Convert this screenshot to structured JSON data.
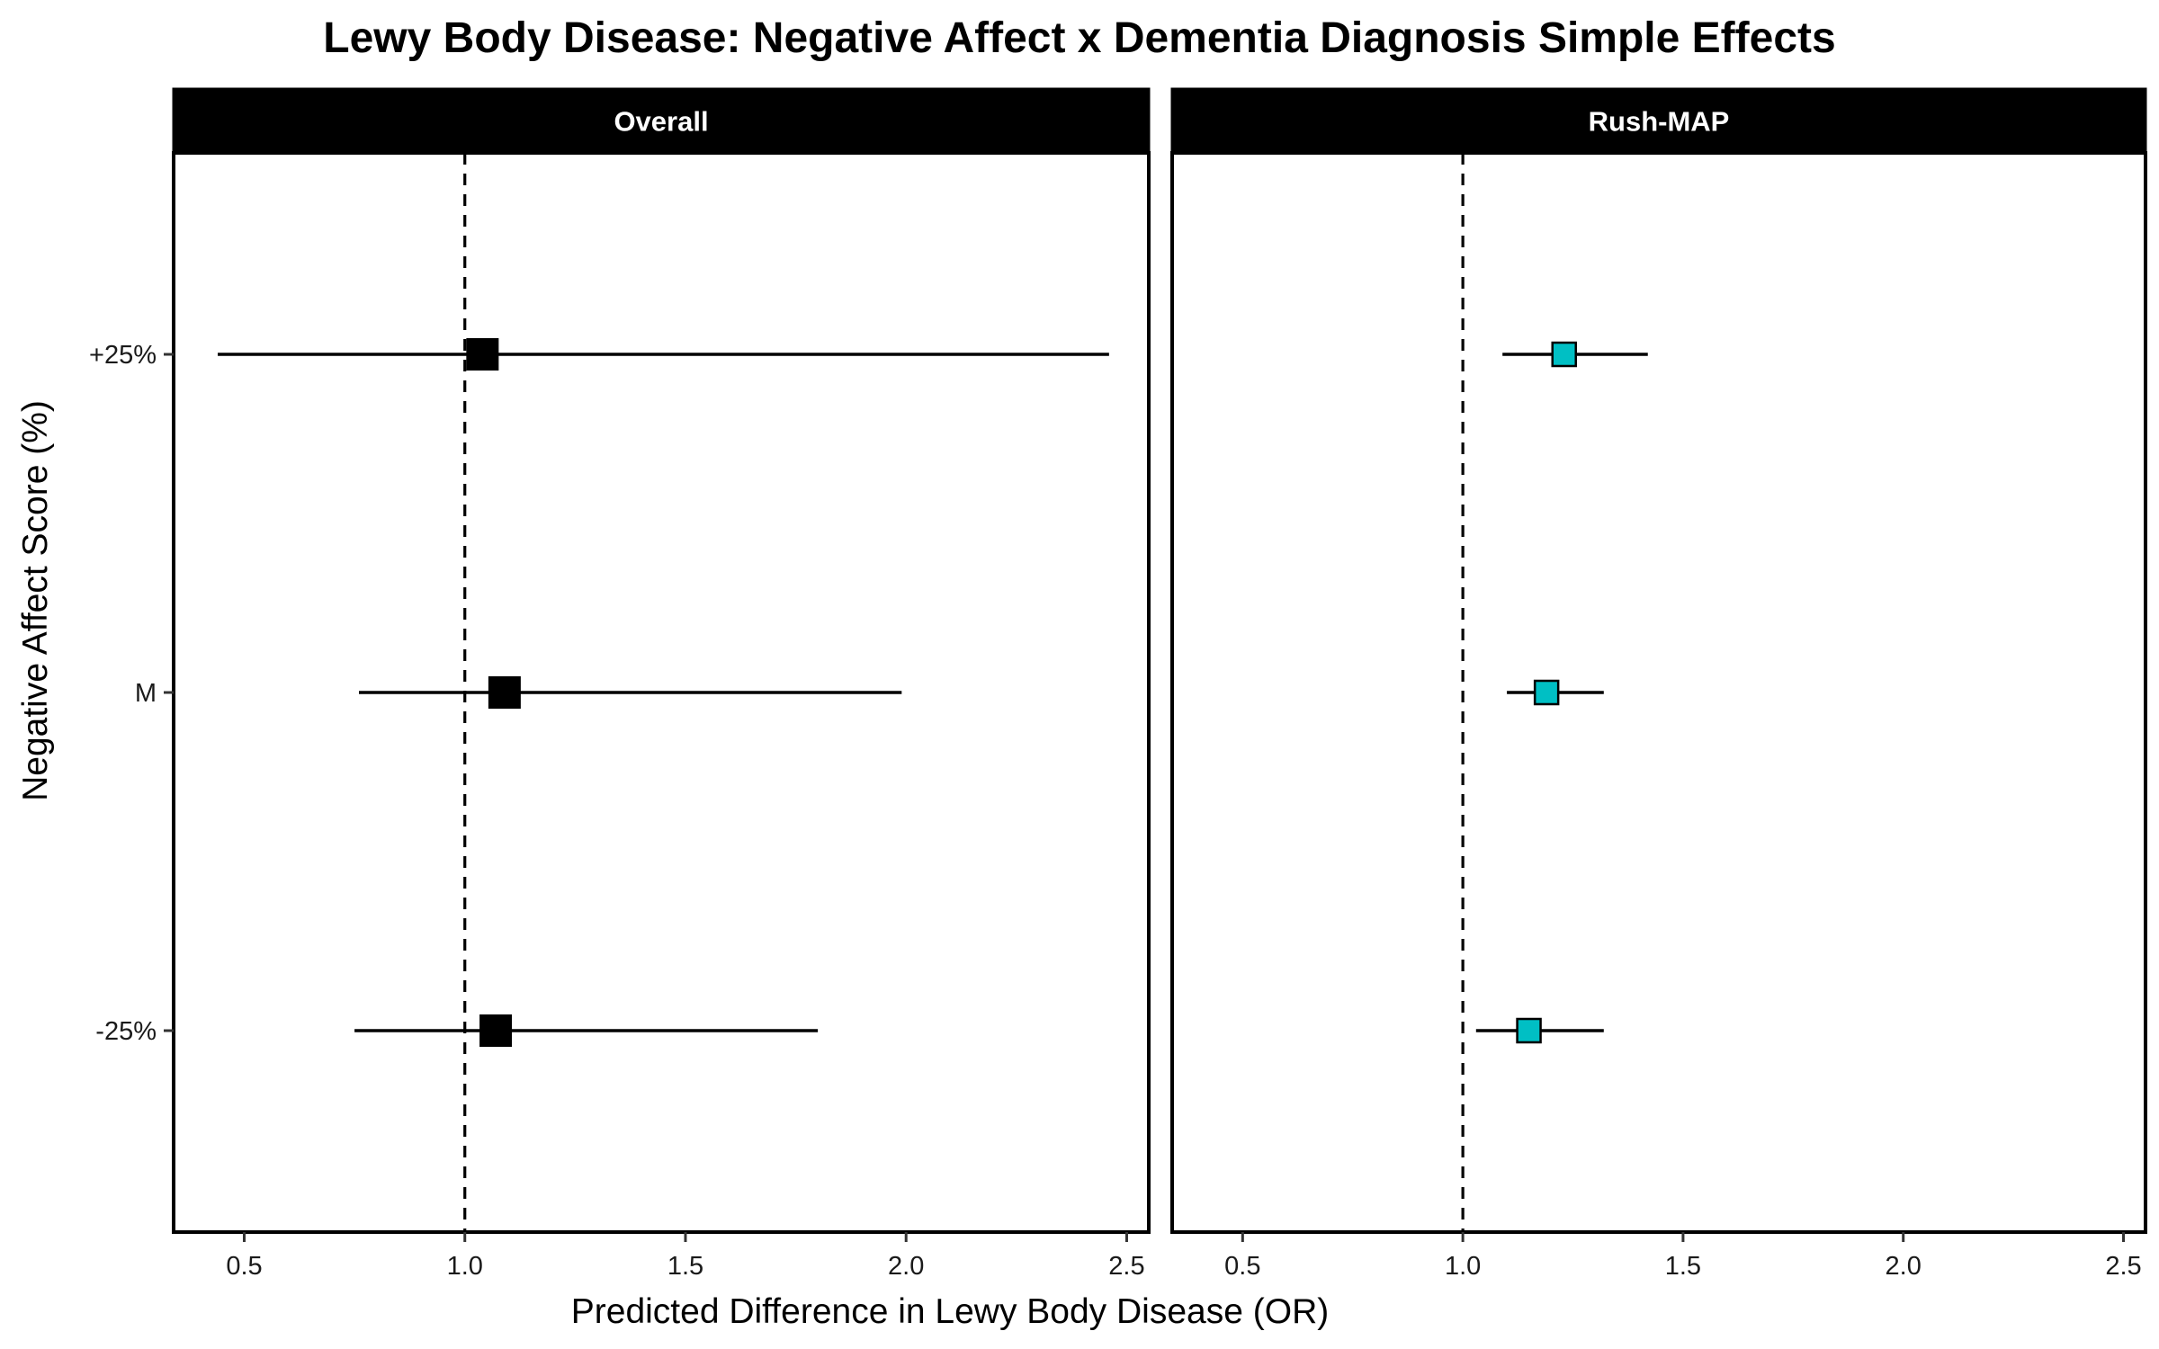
{
  "chart_data": {
    "type": "forest",
    "title": "Lewy Body Disease: Negative Affect x Dementia Diagnosis Simple Effects",
    "xlabel": "Predicted Difference in Lewy Body Disease (OR)",
    "ylabel": "Negative Affect Score (%)",
    "categories": [
      "+25%",
      "M",
      "-25%"
    ],
    "x_ticks": [
      "0.5",
      "1.0",
      "1.5",
      "2.0",
      "2.5"
    ],
    "xlim": [
      0.34,
      2.55
    ],
    "reference_line": 1.0,
    "grid": false,
    "panels": [
      {
        "name": "Overall",
        "marker_color": "#000000",
        "points": [
          {
            "category": "+25%",
            "estimate": 1.04,
            "lower": 0.44,
            "upper": 2.46
          },
          {
            "category": "M",
            "estimate": 1.09,
            "lower": 0.76,
            "upper": 1.99
          },
          {
            "category": "-25%",
            "estimate": 1.07,
            "lower": 0.75,
            "upper": 1.8
          }
        ]
      },
      {
        "name": "Rush-MAP",
        "marker_color": "#00BFC4",
        "points": [
          {
            "category": "+25%",
            "estimate": 1.23,
            "lower": 1.09,
            "upper": 1.42
          },
          {
            "category": "M",
            "estimate": 1.19,
            "lower": 1.1,
            "upper": 1.32
          },
          {
            "category": "-25%",
            "estimate": 1.15,
            "lower": 1.03,
            "upper": 1.32
          }
        ]
      }
    ]
  }
}
